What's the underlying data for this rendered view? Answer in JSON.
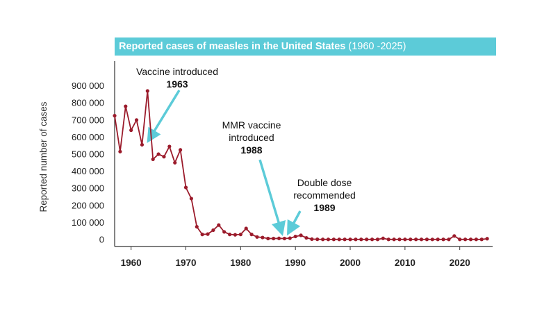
{
  "chart_data": {
    "type": "line",
    "title": "Reported cases of measles in the United States",
    "subtitle": "(1960 -2025)",
    "xlabel": "",
    "ylabel": "Reported number of cases",
    "xlim": [
      1957,
      2026
    ],
    "ylim": [
      0,
      900000
    ],
    "x_ticks": [
      1960,
      1970,
      1980,
      1990,
      2000,
      2010,
      2020
    ],
    "y_ticks": [
      0,
      100000,
      200000,
      300000,
      400000,
      500000,
      600000,
      700000,
      800000,
      900000
    ],
    "y_tick_labels": [
      "0",
      "100 000",
      "200 000",
      "300 000",
      "400 000",
      "500 000",
      "600 000",
      "700 000",
      "800 000",
      "900 000"
    ],
    "grid": false,
    "colors": {
      "line": "#9b1b2b",
      "title_bg": "#5ccbd8",
      "arrow": "#5ccbd8"
    },
    "series": [
      {
        "x": [
          1957,
          1958,
          1959,
          1960,
          1961,
          1962,
          1963,
          1964,
          1965,
          1966,
          1967,
          1968,
          1969,
          1970,
          1971,
          1972,
          1973,
          1974,
          1975,
          1976,
          1977,
          1978,
          1979,
          1980,
          1981,
          1982,
          1983,
          1984,
          1985,
          1986,
          1987,
          1988,
          1989,
          1990,
          1991,
          1992,
          1993,
          1994,
          1995,
          1996,
          1997,
          1998,
          1999,
          2000,
          2001,
          2002,
          2003,
          2004,
          2005,
          2006,
          2007,
          2008,
          2009,
          2010,
          2011,
          2012,
          2013,
          2014,
          2015,
          2016,
          2017,
          2018,
          2019,
          2020,
          2021,
          2022,
          2023,
          2024,
          2025
        ],
        "values": [
          725000,
          515000,
          780000,
          640000,
          700000,
          555000,
          870000,
          470000,
          500000,
          485000,
          545000,
          450000,
          525000,
          305000,
          240000,
          75000,
          30000,
          32000,
          55000,
          85000,
          45000,
          30000,
          28000,
          30000,
          65000,
          30000,
          15000,
          12000,
          6000,
          6000,
          7000,
          6000,
          8000,
          18000,
          25000,
          10000,
          2500,
          1500,
          1000,
          1000,
          1000,
          1000,
          1000,
          1000,
          1000,
          1000,
          1000,
          1000,
          1000,
          7000,
          1000,
          1000,
          1000,
          1000,
          1000,
          1000,
          1000,
          1000,
          700,
          1000,
          1000,
          1000,
          21000,
          1000,
          1000,
          1000,
          1000,
          1000,
          5000
        ]
      }
    ],
    "annotations": [
      {
        "lines": [
          "Vaccine introduced"
        ],
        "bold": "1963"
      },
      {
        "lines": [
          "MMR vaccine",
          "introduced"
        ],
        "bold": "1988"
      },
      {
        "lines": [
          "Double dose",
          "recommended"
        ],
        "bold": "1989"
      }
    ]
  }
}
